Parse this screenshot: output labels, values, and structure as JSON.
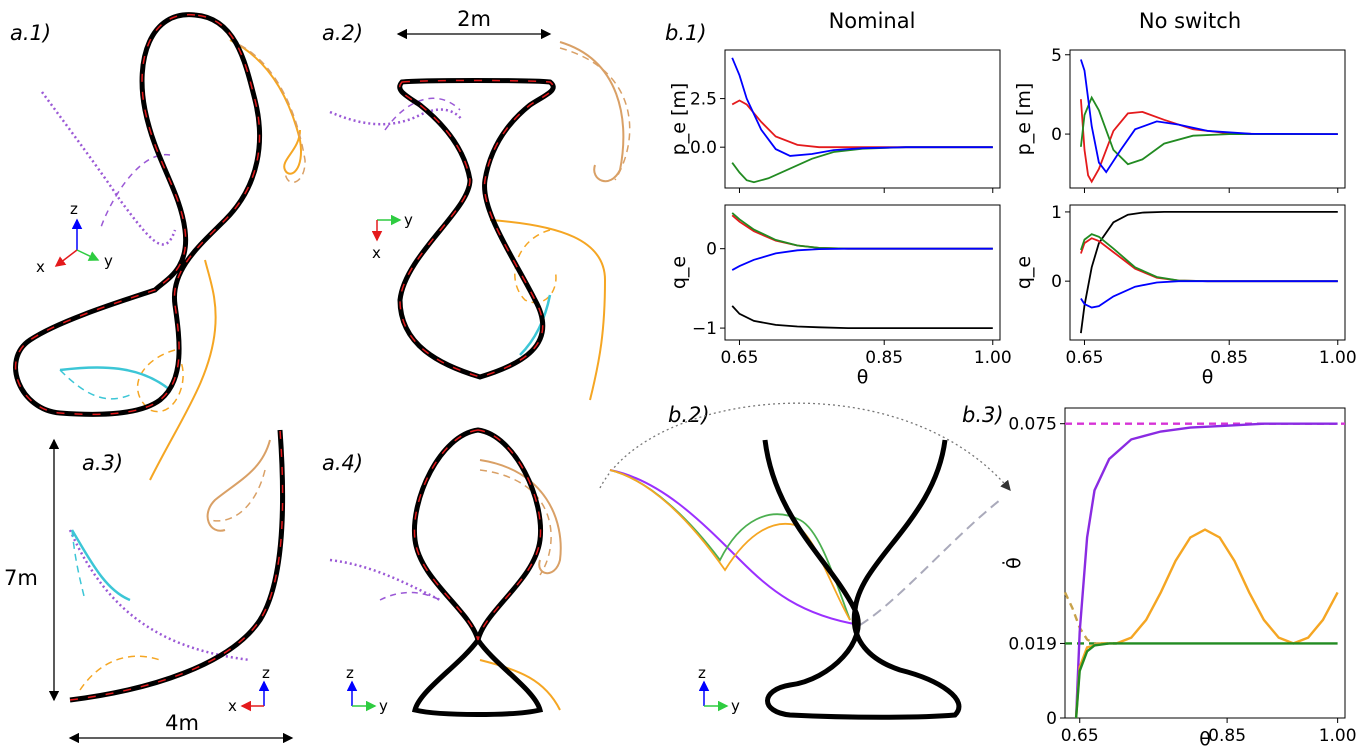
{
  "labels": {
    "a1": "a.1)",
    "a2": "a.2)",
    "a3": "a.3)",
    "a4": "a.4)",
    "b1": "b.1)",
    "b2": "b.2)",
    "b3": "b.3)"
  },
  "column_titles": {
    "nominal": "Nominal",
    "no_switch": "No switch"
  },
  "dimensions": {
    "width_2m": "2m",
    "height_7m": "7m",
    "width_4m": "4m"
  },
  "triads": {
    "a1": [
      "z",
      "x",
      "y"
    ],
    "a2": [
      "y",
      "x"
    ],
    "a3": [
      "z",
      "x"
    ],
    "a4": [
      "z",
      "y"
    ],
    "b2": [
      "z",
      "y"
    ]
  },
  "colors": {
    "red": "#e41a1c",
    "green": "#228b22",
    "blue": "#0000ff",
    "black": "#000000",
    "purple": "#8a2be2",
    "orange": "#f5a623",
    "cyan": "#3cc6d6",
    "magenta": "#d633d6",
    "olive": "#c8a24a"
  },
  "chart_data": [
    {
      "type": "line",
      "id": "b1-nominal-pe",
      "ylabel": "p_e [m]",
      "yticks": [
        "2.5",
        "0.0"
      ],
      "series": [
        {
          "color": "red",
          "x": [
            0.64,
            0.65,
            0.66,
            0.68,
            0.7,
            0.73,
            0.76,
            0.8,
            0.85,
            0.9,
            1.0
          ],
          "y": [
            2.2,
            2.4,
            2.2,
            1.3,
            0.55,
            0.12,
            0.0,
            0.0,
            0.0,
            0.0,
            0.0
          ]
        },
        {
          "color": "green",
          "x": [
            0.64,
            0.65,
            0.66,
            0.67,
            0.69,
            0.72,
            0.75,
            0.78,
            0.82,
            0.88,
            1.0
          ],
          "y": [
            -0.8,
            -1.3,
            -1.7,
            -1.8,
            -1.6,
            -1.1,
            -0.6,
            -0.25,
            -0.08,
            0.0,
            0.0
          ]
        },
        {
          "color": "blue",
          "x": [
            0.64,
            0.65,
            0.66,
            0.68,
            0.7,
            0.72,
            0.75,
            0.78,
            0.82,
            0.88,
            1.0
          ],
          "y": [
            4.6,
            3.7,
            2.5,
            0.9,
            -0.1,
            -0.45,
            -0.35,
            -0.15,
            -0.05,
            0.0,
            0.0
          ]
        }
      ],
      "xlim": [
        0.63,
        1.01
      ],
      "ylim": [
        -2.1,
        5.0
      ]
    },
    {
      "type": "line",
      "id": "b1-nominal-qe",
      "ylabel": "q_e",
      "xlabel": "θ",
      "xticks": [
        "0.65",
        "0.85",
        "1.00"
      ],
      "yticks": [
        "0",
        "−1"
      ],
      "series": [
        {
          "color": "red",
          "x": [
            0.64,
            0.65,
            0.67,
            0.7,
            0.73,
            0.76,
            0.8,
            0.85,
            1.0
          ],
          "y": [
            0.42,
            0.34,
            0.22,
            0.1,
            0.04,
            0.01,
            0.0,
            0.0,
            0.0
          ]
        },
        {
          "color": "green",
          "x": [
            0.64,
            0.65,
            0.67,
            0.7,
            0.73,
            0.76,
            0.8,
            0.85,
            1.0
          ],
          "y": [
            0.45,
            0.37,
            0.24,
            0.11,
            0.04,
            0.01,
            0.0,
            0.0,
            0.0
          ]
        },
        {
          "color": "blue",
          "x": [
            0.64,
            0.65,
            0.67,
            0.7,
            0.73,
            0.76,
            0.8,
            0.85,
            1.0
          ],
          "y": [
            -0.27,
            -0.22,
            -0.14,
            -0.06,
            -0.02,
            -0.005,
            0.0,
            0.0,
            0.0
          ]
        },
        {
          "color": "black",
          "x": [
            0.64,
            0.65,
            0.67,
            0.7,
            0.73,
            0.76,
            0.8,
            0.85,
            1.0
          ],
          "y": [
            -0.72,
            -0.82,
            -0.91,
            -0.96,
            -0.98,
            -0.99,
            -1.0,
            -1.0,
            -1.0
          ]
        }
      ],
      "xlim": [
        0.63,
        1.01
      ],
      "ylim": [
        -1.15,
        0.55
      ]
    },
    {
      "type": "line",
      "id": "b1-noswitch-pe",
      "ylabel": "p_e [m]",
      "yticks": [
        "5",
        "0"
      ],
      "series": [
        {
          "color": "red",
          "x": [
            0.645,
            0.65,
            0.655,
            0.66,
            0.67,
            0.69,
            0.71,
            0.73,
            0.76,
            0.8,
            0.85,
            0.9,
            1.0
          ],
          "y": [
            2.2,
            -1.0,
            -2.6,
            -3.0,
            -2.2,
            0.2,
            1.3,
            1.4,
            0.9,
            0.3,
            0.05,
            0.0,
            0.0
          ]
        },
        {
          "color": "green",
          "x": [
            0.645,
            0.65,
            0.66,
            0.67,
            0.69,
            0.71,
            0.73,
            0.76,
            0.8,
            0.85,
            0.9,
            1.0
          ],
          "y": [
            -0.8,
            1.2,
            2.3,
            1.5,
            -1.0,
            -1.9,
            -1.6,
            -0.6,
            -0.1,
            0.0,
            0.0,
            0.0
          ]
        },
        {
          "color": "blue",
          "x": [
            0.645,
            0.65,
            0.66,
            0.67,
            0.68,
            0.7,
            0.72,
            0.75,
            0.78,
            0.82,
            0.88,
            1.0
          ],
          "y": [
            4.7,
            4.0,
            0.5,
            -1.8,
            -2.4,
            -1.0,
            0.3,
            0.8,
            0.6,
            0.2,
            0.02,
            0.0
          ]
        }
      ],
      "xlim": [
        0.63,
        1.01
      ],
      "ylim": [
        -3.4,
        5.3
      ]
    },
    {
      "type": "line",
      "id": "b1-noswitch-qe",
      "ylabel": "q_e",
      "xlabel": "θ",
      "xticks": [
        "0.65",
        "0.85",
        "1.00"
      ],
      "yticks": [
        "1",
        "0"
      ],
      "series": [
        {
          "color": "black",
          "x": [
            0.645,
            0.65,
            0.66,
            0.67,
            0.69,
            0.71,
            0.73,
            0.76,
            0.8,
            1.0
          ],
          "y": [
            -0.75,
            -0.35,
            0.2,
            0.55,
            0.85,
            0.96,
            0.99,
            1.0,
            1.0,
            1.0
          ]
        },
        {
          "color": "red",
          "x": [
            0.645,
            0.65,
            0.66,
            0.67,
            0.69,
            0.72,
            0.75,
            0.78,
            0.82,
            1.0
          ],
          "y": [
            0.4,
            0.55,
            0.62,
            0.58,
            0.42,
            0.18,
            0.05,
            0.01,
            0.0,
            0.0
          ]
        },
        {
          "color": "green",
          "x": [
            0.645,
            0.65,
            0.66,
            0.67,
            0.69,
            0.72,
            0.75,
            0.78,
            0.82,
            1.0
          ],
          "y": [
            0.45,
            0.6,
            0.68,
            0.64,
            0.47,
            0.2,
            0.06,
            0.01,
            0.0,
            0.0
          ]
        },
        {
          "color": "blue",
          "x": [
            0.645,
            0.65,
            0.66,
            0.67,
            0.69,
            0.72,
            0.75,
            0.78,
            0.82,
            1.0
          ],
          "y": [
            -0.25,
            -0.33,
            -0.38,
            -0.36,
            -0.22,
            -0.08,
            -0.02,
            0.0,
            0.0,
            0.0
          ]
        }
      ],
      "xlim": [
        0.63,
        1.01
      ],
      "ylim": [
        -0.85,
        1.1
      ]
    },
    {
      "type": "line",
      "id": "b3-thetadot",
      "ylabel": "θ̇",
      "xlabel": "θ",
      "xticks": [
        "0.65",
        "0.85",
        "1.00"
      ],
      "yticks": [
        "0.075",
        "0.019",
        "0"
      ],
      "series": [
        {
          "color": "magenta",
          "dashed": true,
          "x": [
            0.63,
            1.01
          ],
          "y": [
            0.075,
            0.075
          ]
        },
        {
          "color": "green",
          "dashed": true,
          "x": [
            0.63,
            0.7
          ],
          "y": [
            0.019,
            0.019
          ]
        },
        {
          "color": "olive",
          "dashed": true,
          "x": [
            0.63,
            0.64,
            0.65,
            0.66,
            0.67,
            0.68
          ],
          "y": [
            0.032,
            0.028,
            0.023,
            0.02,
            0.019,
            0.019
          ]
        },
        {
          "color": "purple",
          "x": [
            0.645,
            0.65,
            0.66,
            0.67,
            0.69,
            0.72,
            0.76,
            0.8,
            0.85,
            0.9,
            1.0
          ],
          "y": [
            0.0,
            0.022,
            0.046,
            0.058,
            0.066,
            0.071,
            0.073,
            0.074,
            0.0745,
            0.075,
            0.075
          ]
        },
        {
          "color": "orange",
          "x": [
            0.645,
            0.65,
            0.66,
            0.68,
            0.7,
            0.72,
            0.74,
            0.76,
            0.78,
            0.8,
            0.82,
            0.84,
            0.86,
            0.88,
            0.9,
            0.92,
            0.94,
            0.96,
            0.98,
            1.0
          ],
          "y": [
            0.0,
            0.013,
            0.018,
            0.019,
            0.019,
            0.0205,
            0.025,
            0.032,
            0.04,
            0.046,
            0.048,
            0.046,
            0.04,
            0.032,
            0.025,
            0.0205,
            0.019,
            0.0205,
            0.025,
            0.032
          ]
        },
        {
          "color": "green",
          "x": [
            0.645,
            0.65,
            0.66,
            0.67,
            0.69,
            0.72,
            0.8,
            1.0
          ],
          "y": [
            0.0,
            0.012,
            0.017,
            0.0185,
            0.019,
            0.019,
            0.019,
            0.019
          ]
        }
      ],
      "xlim": [
        0.63,
        1.01
      ],
      "ylim": [
        0.0,
        0.079
      ]
    }
  ]
}
